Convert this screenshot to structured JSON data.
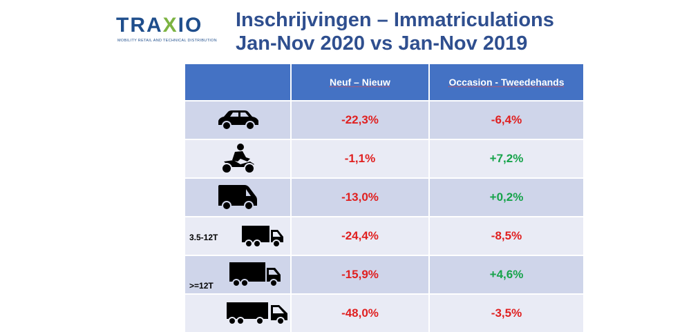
{
  "logo": {
    "brand_prefix": "TRA",
    "brand_x": "X",
    "brand_suffix": "IO",
    "tagline": "MOBILITY RETAIL AND TECHNICAL DISTRIBUTION"
  },
  "title": {
    "line1": "Inschrijvingen – Immatriculations",
    "line2": "Jan-Nov 2020 vs Jan-Nov 2019"
  },
  "table": {
    "headers": [
      "",
      "Neuf – Nieuw",
      "Occasion - Tweedehands"
    ],
    "rows": [
      {
        "vehicle": "car-icon",
        "label": "",
        "new": "-22,3%",
        "used": "-6,4%"
      },
      {
        "vehicle": "motorcycle-icon",
        "label": "",
        "new": "-1,1%",
        "used": "+7,2%"
      },
      {
        "vehicle": "van-icon",
        "label": "",
        "new": "-13,0%",
        "used": "+0,2%"
      },
      {
        "vehicle": "small-truck-icon",
        "label": "3.5-12T",
        "new": "-24,4%",
        "used": "-8,5%"
      },
      {
        "vehicle": "truck-icon",
        "label": ">=12T",
        "new": "-15,9%",
        "used": "+4,6%"
      },
      {
        "vehicle": "tractor-trailer-icon",
        "label": "",
        "new": "-48,0%",
        "used": "-3,5%"
      }
    ]
  },
  "colors": {
    "negative": "#e02020",
    "positive": "#16a34a",
    "header": "#4472c4"
  }
}
